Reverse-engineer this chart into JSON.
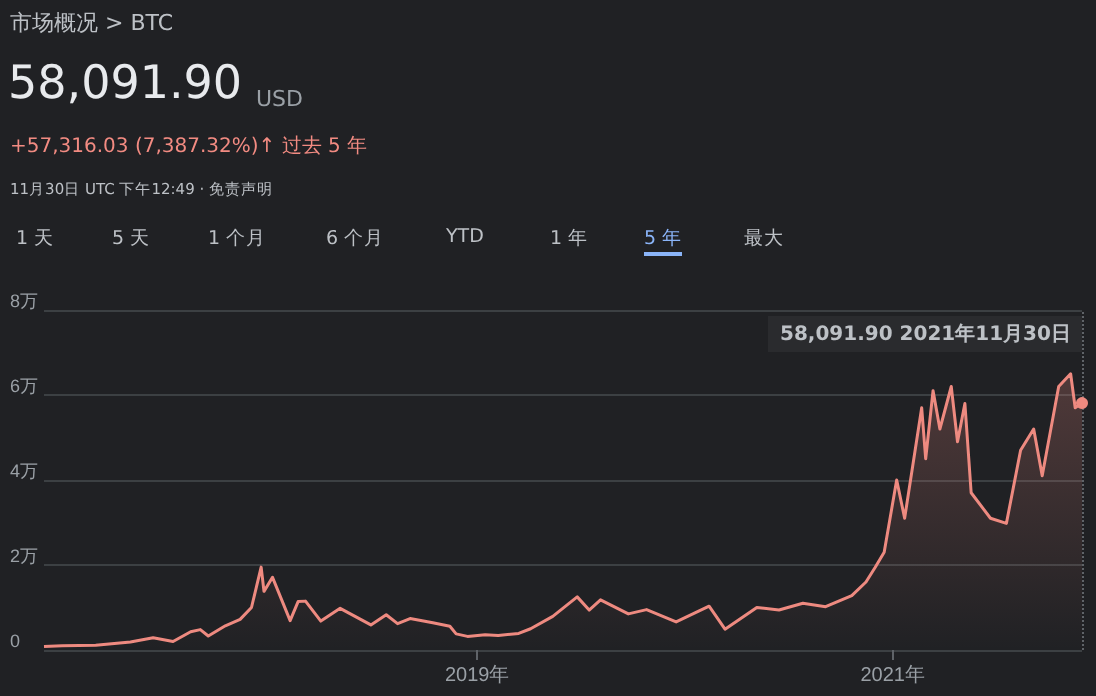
{
  "chart_data": {
    "type": "area",
    "title": "市场概况 > BTC",
    "annotations": [
      "58,091.90",
      "USD",
      "+57,316.03 (7,387.32%)↑ 过去 5 年",
      "11月30日 UTC 下午12:49 · 免责声明",
      "1 天",
      "5 天",
      "1 个月",
      "6 个月",
      "YTD",
      "1 年",
      "5 年",
      "最大",
      {
        "text": "58,091.90  2021年11月30日",
        "x": "2021-11-30",
        "y": 5.81
      }
    ],
    "x": [
      "2016-11-30",
      "2017-01-01",
      "2017-03-01",
      "2017-05-01",
      "2017-06-10",
      "2017-07-15",
      "2017-08-15",
      "2017-09-01",
      "2017-09-15",
      "2017-10-15",
      "2017-11-10",
      "2017-11-30",
      "2017-12-17",
      "2017-12-22",
      "2018-01-06",
      "2018-02-06",
      "2018-02-20",
      "2018-03-05",
      "2018-04-01",
      "2018-05-05",
      "2018-06-28",
      "2018-07-25",
      "2018-08-14",
      "2018-09-05",
      "2018-10-15",
      "2018-11-14",
      "2018-11-25",
      "2018-12-15",
      "2019-01-15",
      "2019-02-07",
      "2019-03-15",
      "2019-04-05",
      "2019-05-14",
      "2019-06-26",
      "2019-07-17",
      "2019-08-06",
      "2019-09-24",
      "2019-10-26",
      "2019-12-17",
      "2020-02-13",
      "2020-03-12",
      "2020-05-07",
      "2020-06-15",
      "2020-07-27",
      "2020-09-05",
      "2020-10-21",
      "2020-11-15",
      "2020-12-01",
      "2020-12-17",
      "2021-01-08",
      "2021-01-22",
      "2021-02-21",
      "2021-02-28",
      "2021-03-13",
      "2021-03-25",
      "2021-04-14",
      "2021-04-25",
      "2021-05-08",
      "2021-05-19",
      "2021-06-22",
      "2021-07-20",
      "2021-08-14",
      "2021-09-06",
      "2021-09-21",
      "2021-10-20",
      "2021-11-10",
      "2021-11-18",
      "2021-11-30"
    ],
    "series": [
      {
        "color": "#ee8a80",
        "values": [
          0.08,
          0.1,
          0.11,
          0.19,
          0.29,
          0.2,
          0.43,
          0.48,
          0.33,
          0.57,
          0.72,
          1.0,
          1.95,
          1.38,
          1.71,
          0.69,
          1.14,
          1.15,
          0.68,
          0.98,
          0.59,
          0.83,
          0.62,
          0.74,
          0.64,
          0.56,
          0.38,
          0.32,
          0.36,
          0.34,
          0.39,
          0.5,
          0.79,
          1.25,
          0.94,
          1.18,
          0.85,
          0.95,
          0.66,
          1.03,
          0.49,
          1.0,
          0.94,
          1.1,
          1.02,
          1.28,
          1.6,
          1.94,
          2.3,
          4.0,
          3.1,
          5.7,
          4.5,
          6.1,
          5.2,
          6.2,
          4.9,
          5.8,
          3.7,
          3.1,
          2.98,
          4.7,
          5.2,
          4.1,
          6.2,
          6.5,
          5.7,
          5.81
        ]
      }
    ],
    "xlim": [
      "2016-11-30",
      "2021-11-30"
    ],
    "xticks": [
      {
        "value": "2019-01-01",
        "label": "2019年"
      },
      {
        "value": "2021-01-01",
        "label": "2021年"
      }
    ],
    "ylim": [
      0,
      8
    ],
    "yticks": [
      0,
      {
        "value": 2,
        "label": "2万"
      },
      {
        "value": 4,
        "label": "4万"
      },
      {
        "value": 6,
        "label": "6万"
      },
      {
        "value": 8,
        "label": "8万"
      }
    ],
    "grid": "y",
    "marker": "none",
    "line_style": "solid",
    "ref_lines": [
      {
        "axis": "x",
        "value": "2021-11-30",
        "color": "#5f6368",
        "line_style": "dotted"
      }
    ]
  }
}
